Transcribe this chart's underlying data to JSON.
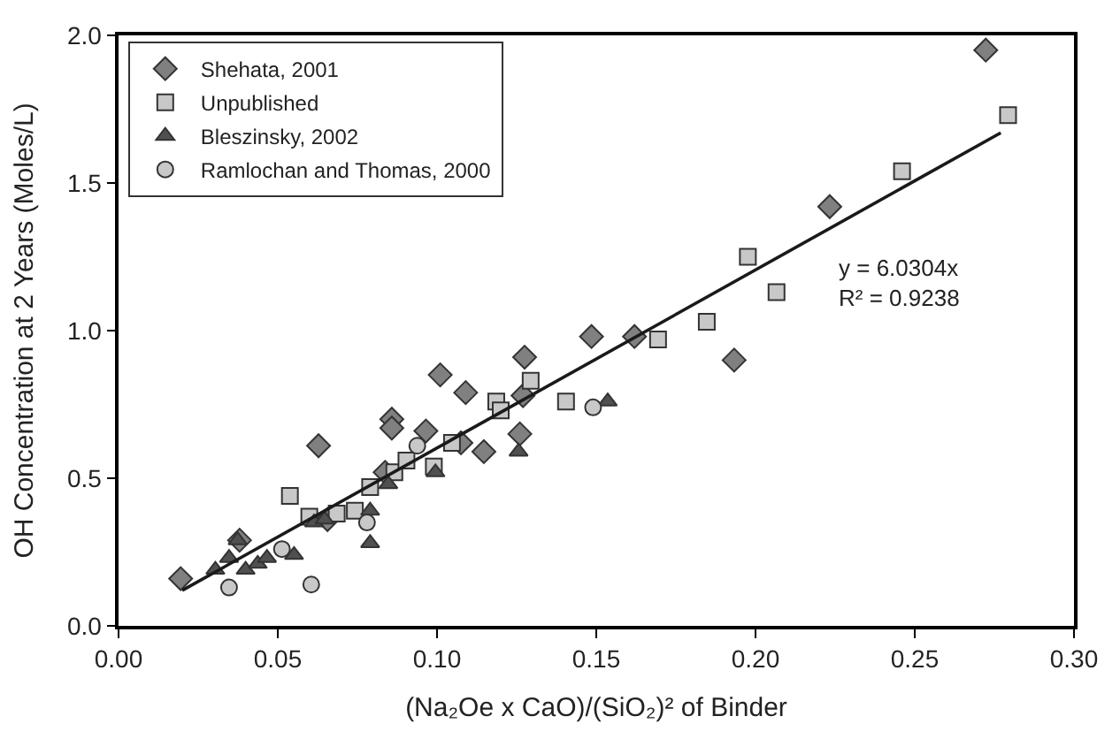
{
  "chart_data": {
    "type": "scatter",
    "xlabel": "(Na₂Oe x CaO)/(SiO₂)² of Binder",
    "ylabel": "OH Concentration at 2 Years (Moles/L)",
    "xlim": [
      0,
      0.3
    ],
    "ylim": [
      0,
      2.0
    ],
    "xticks": [
      {
        "value": 0,
        "label": "0.00"
      },
      {
        "value": 0.05,
        "label": "0.05"
      },
      {
        "value": 0.1,
        "label": "0.10"
      },
      {
        "value": 0.15,
        "label": "0.15"
      },
      {
        "value": 0.2,
        "label": "0.20"
      },
      {
        "value": 0.25,
        "label": "0.25"
      },
      {
        "value": 0.3,
        "label": "0.30"
      }
    ],
    "yticks": [
      {
        "value": 0,
        "label": "0.0"
      },
      {
        "value": 0.5,
        "label": "0.5"
      },
      {
        "value": 1.0,
        "label": "1.0"
      },
      {
        "value": 1.5,
        "label": "1.5"
      },
      {
        "value": 2.0,
        "label": "2.0"
      }
    ],
    "legend": "top left",
    "annotations": [
      "y = 6.0304x\nR² = 0.9238"
    ],
    "series": [
      {
        "name": "Shehata, 2001",
        "color": "#808080",
        "marker": "diamond",
        "x": [
          0.0195,
          0.0628,
          0.101,
          0.109,
          0.0858,
          0.0858,
          0.0965,
          0.0837,
          0.038,
          0.0656,
          0.1275,
          0.127,
          0.126,
          0.1147,
          0.1485,
          0.162,
          0.1933,
          0.1075,
          0.2723,
          0.2233
        ],
        "values": [
          0.16,
          0.61,
          0.85,
          0.79,
          0.7,
          0.67,
          0.66,
          0.52,
          0.29,
          0.36,
          0.91,
          0.78,
          0.65,
          0.59,
          0.98,
          0.98,
          0.9,
          0.62,
          1.95,
          1.42
        ]
      },
      {
        "name": "Unpublished",
        "color": "#c8c8c8",
        "marker": "square",
        "x": [
          0.0538,
          0.0599,
          0.0685,
          0.0742,
          0.079,
          0.0866,
          0.0904,
          0.099,
          0.1047,
          0.1186,
          0.12,
          0.1294,
          0.1405,
          0.1694,
          0.1847,
          0.1976,
          0.2066,
          0.246,
          0.2793
        ],
        "values": [
          0.44,
          0.37,
          0.38,
          0.39,
          0.47,
          0.52,
          0.56,
          0.54,
          0.62,
          0.76,
          0.73,
          0.83,
          0.76,
          0.97,
          1.03,
          1.25,
          1.13,
          1.54,
          1.73
        ]
      },
      {
        "name": "Bleszinsky, 2002",
        "color": "#505050",
        "marker": "triangle",
        "x": [
          0.0304,
          0.0347,
          0.0374,
          0.0399,
          0.0437,
          0.0466,
          0.0551,
          0.0614,
          0.0647,
          0.079,
          0.079,
          0.0847,
          0.0995,
          0.1256,
          0.1536
        ],
        "values": [
          0.19,
          0.23,
          0.29,
          0.19,
          0.21,
          0.23,
          0.24,
          0.35,
          0.36,
          0.39,
          0.28,
          0.48,
          0.52,
          0.59,
          0.76
        ]
      },
      {
        "name": "Ramlochan and Thomas, 2000",
        "color": "#c8c8c8",
        "marker": "circle",
        "x": [
          0.0347,
          0.0605,
          0.0513,
          0.078,
          0.0938,
          0.149
        ],
        "values": [
          0.13,
          0.14,
          0.26,
          0.35,
          0.61,
          0.74
        ]
      },
      {
        "type": "line",
        "color": "#1a1a1a",
        "marker": "none",
        "line_style": "solid",
        "x": [
          0.02,
          0.277
        ],
        "values": [
          0.12,
          1.67
        ]
      }
    ]
  }
}
